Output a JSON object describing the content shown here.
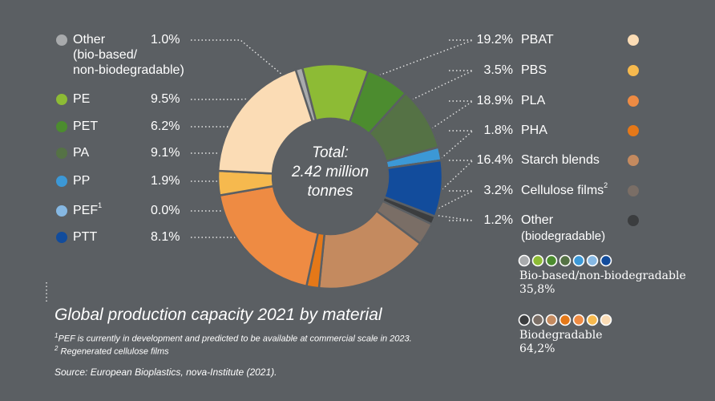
{
  "chart_data": {
    "type": "donut",
    "center_label": [
      "Total:",
      "2.42 million",
      "tonnes"
    ],
    "slices": [
      {
        "group": "bio",
        "name": "Other",
        "name_line2": "(bio-based/",
        "name_line3": "non-biodegradable)",
        "value": 1.0,
        "label": "1.0%",
        "color": "#a8aaac"
      },
      {
        "group": "bio",
        "name": "PE",
        "value": 9.5,
        "label": "9.5%",
        "color": "#8dbb35"
      },
      {
        "group": "bio",
        "name": "PET",
        "value": 6.2,
        "label": "6.2%",
        "color": "#4c8c2f"
      },
      {
        "group": "bio",
        "name": "PA",
        "value": 9.1,
        "label": "9.1%",
        "color": "#557245"
      },
      {
        "group": "bio",
        "name": "PP",
        "value": 1.9,
        "label": "1.9%",
        "color": "#3c98d6"
      },
      {
        "group": "bio",
        "name": "PEF",
        "sup": "1",
        "value": 0.0,
        "label": "0.0%",
        "color": "#86b8e3"
      },
      {
        "group": "bio",
        "name": "PTT",
        "value": 8.1,
        "label": "8.1%",
        "color": "#124c9c"
      },
      {
        "group": "bd",
        "name": "Other",
        "name_line2": "(biodegradable)",
        "value": 1.2,
        "label": "1.2%",
        "color": "#3b3d3f"
      },
      {
        "group": "bd",
        "name": "Cellulose films",
        "sup": "2",
        "value": 3.2,
        "label": "3.2%",
        "color": "#7a6e66"
      },
      {
        "group": "bd",
        "name": "Starch blends",
        "value": 16.4,
        "label": "16.4%",
        "color": "#c48a5f"
      },
      {
        "group": "bd",
        "name": "PHA",
        "value": 1.8,
        "label": "1.8%",
        "color": "#e57818"
      },
      {
        "group": "bd",
        "name": "PLA",
        "value": 18.9,
        "label": "18.9%",
        "color": "#ee8b43"
      },
      {
        "group": "bd",
        "name": "PBS",
        "value": 3.5,
        "label": "3.5%",
        "color": "#f6b94e"
      },
      {
        "group": "bd",
        "name": "PBAT",
        "value": 19.2,
        "label": "19.2%",
        "color": "#fbdcb5"
      }
    ],
    "groups": [
      {
        "id": "bio",
        "label_line1": "Bio-based/non-biodegradable",
        "label_line2": "35,8%"
      },
      {
        "id": "bd",
        "label_line1": "Biodegradable",
        "label_line2": "64,2%"
      }
    ]
  },
  "title": "Global production capacity 2021 by material",
  "footnote1_mark": "1",
  "footnote1": "PEF is currently in development and predicted to be available at commercial scale in 2023.",
  "footnote2_mark": "2",
  "footnote2": "Regenerated cellulose films",
  "source": "Source: European Bioplastics, nova-Institute (2021)."
}
